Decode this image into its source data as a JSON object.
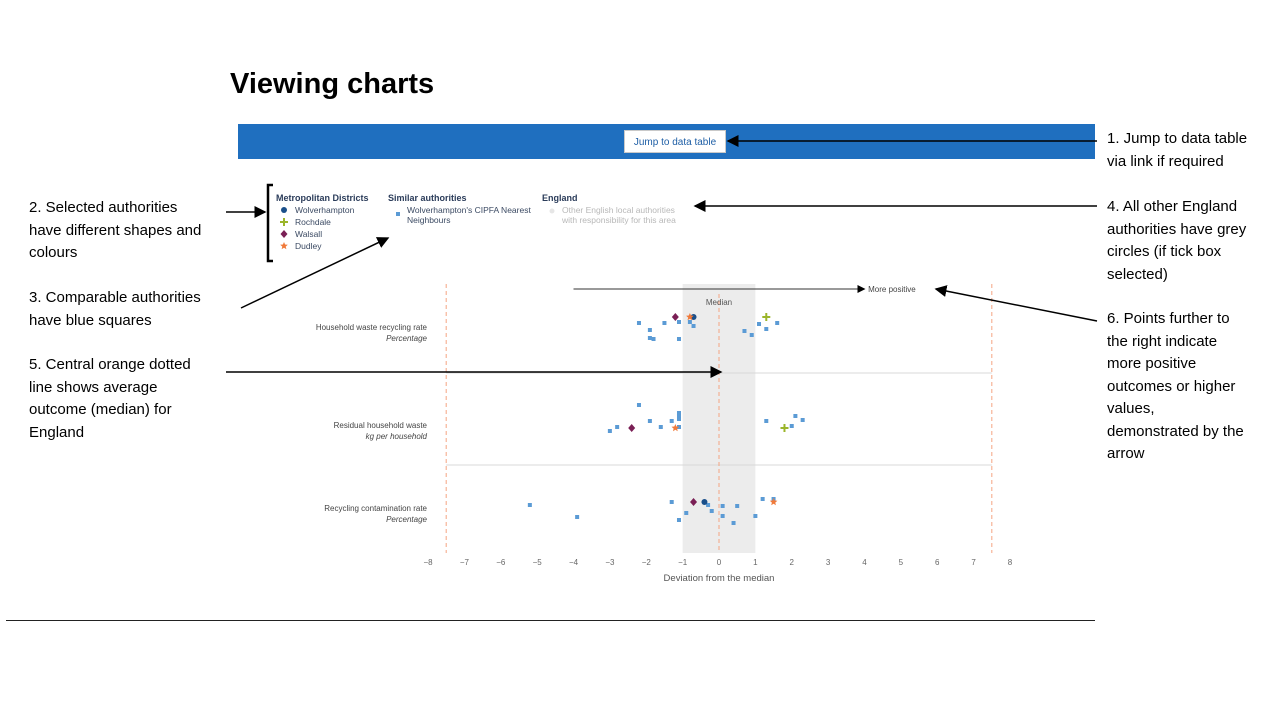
{
  "page": {
    "title": "Viewing charts",
    "jump_button": "Jump to data table"
  },
  "annotations": {
    "note1": [
      "1. Jump to data table",
      "via link if required"
    ],
    "note2": [
      "2. Selected authorities",
      "have different shapes and",
      "colours"
    ],
    "note3": [
      "3. Comparable authorities",
      "have blue squares"
    ],
    "note4": [
      "4. All other England",
      "authorities have grey",
      "circles (if tick box",
      "selected)"
    ],
    "note5": [
      "5. Central orange dotted",
      "line shows average",
      "outcome (median) for",
      "England"
    ],
    "note6": [
      "6. Points further to",
      "the right indicate",
      "more positive",
      "outcomes or higher",
      "values,",
      "demonstrated by the",
      "arrow"
    ]
  },
  "legend": {
    "group1_title": "Metropolitan Districts",
    "group1_items": [
      "Wolverhampton",
      "Rochdale",
      "Walsall",
      "Dudley"
    ],
    "group2_title": "Similar authorities",
    "group2_items": [
      "Wolverhampton's CIPFA Nearest",
      "Neighbours"
    ],
    "group3_title": "England",
    "group3_items": [
      "Other English local authorities",
      "with responsibility for this area"
    ]
  },
  "colors": {
    "wolverhampton": "#1a4f8a",
    "rochdale": "#9bb52a",
    "walsall": "#7a1f55",
    "dudley": "#f07a3a",
    "similar": "#5b9bd5",
    "england_other": "#d0d0d0",
    "median_band": "#ececec",
    "limit_line": "#f4a582",
    "bar": "#1f6fbf"
  },
  "chart_data": {
    "type": "scatter",
    "xlabel": "Deviation from the median",
    "xlim": [
      -8,
      8
    ],
    "xticks": [
      -8,
      -7,
      -6,
      -5,
      -4,
      -3,
      -2,
      -1,
      0,
      1,
      2,
      3,
      4,
      5,
      6,
      7,
      8
    ],
    "median_label": "Median",
    "median_band": [
      -1,
      1
    ],
    "limit_lines": [
      -7.5,
      7.5
    ],
    "direction_label": "More positive",
    "direction_arrow": [
      -4,
      4
    ],
    "rows": [
      {
        "name": "Household waste recycling rate",
        "unit": "Percentage",
        "similar": [
          [
            -2.2,
            0.4
          ],
          [
            -1.9,
            -0.3
          ],
          [
            -1.9,
            -1.1
          ],
          [
            -1.8,
            -1.2
          ],
          [
            -1.5,
            0.4
          ],
          [
            -1.1,
            0.5
          ],
          [
            -1.1,
            -1.2
          ],
          [
            -0.8,
            0.5
          ],
          [
            -0.7,
            0.1
          ],
          [
            0.7,
            -0.4
          ],
          [
            0.9,
            -0.8
          ],
          [
            1.1,
            0.3
          ],
          [
            1.3,
            -0.2
          ],
          [
            1.6,
            0.4
          ]
        ],
        "selected": [
          {
            "name": "Wolverhampton",
            "x": -0.7,
            "jitter": 1.0,
            "shape": "circle"
          },
          {
            "name": "Rochdale",
            "x": 1.3,
            "jitter": 1.0,
            "shape": "plus"
          },
          {
            "name": "Walsall",
            "x": -1.2,
            "jitter": 1.0,
            "shape": "diamond"
          },
          {
            "name": "Dudley",
            "x": -0.8,
            "jitter": 1.0,
            "shape": "star"
          }
        ]
      },
      {
        "name": "Residual household waste",
        "unit": "kg per household",
        "similar": [
          [
            -2.2,
            2.0
          ],
          [
            -2.8,
            -0.2
          ],
          [
            -3.0,
            -0.6
          ],
          [
            -1.9,
            0.4
          ],
          [
            -1.6,
            -0.2
          ],
          [
            -1.3,
            0.4
          ],
          [
            -1.1,
            1.2
          ],
          [
            -1.1,
            0.9
          ],
          [
            -1.1,
            0.6
          ],
          [
            -1.1,
            -0.2
          ],
          [
            1.3,
            0.4
          ],
          [
            2.0,
            -0.1
          ],
          [
            2.1,
            0.9
          ],
          [
            2.3,
            0.5
          ]
        ],
        "selected": [
          {
            "name": "Rochdale",
            "x": 1.8,
            "jitter": -0.3,
            "shape": "plus"
          },
          {
            "name": "Walsall",
            "x": -2.4,
            "jitter": -0.3,
            "shape": "diamond"
          },
          {
            "name": "Dudley",
            "x": -1.2,
            "jitter": -0.3,
            "shape": "star"
          }
        ]
      },
      {
        "name": "Recycling contamination rate",
        "unit": "Percentage",
        "similar": [
          [
            -5.2,
            0.3
          ],
          [
            -3.9,
            -0.9
          ],
          [
            -1.3,
            0.6
          ],
          [
            -0.9,
            -0.5
          ],
          [
            -1.1,
            -1.2
          ],
          [
            -0.3,
            0.3
          ],
          [
            -0.2,
            -0.3
          ],
          [
            0.1,
            0.2
          ],
          [
            0.1,
            -0.8
          ],
          [
            0.4,
            -1.5
          ],
          [
            0.5,
            0.2
          ],
          [
            1.0,
            -0.8
          ],
          [
            1.2,
            0.9
          ],
          [
            1.5,
            0.9
          ]
        ],
        "selected": [
          {
            "name": "Wolverhampton",
            "x": -0.4,
            "jitter": 0.6,
            "shape": "circle"
          },
          {
            "name": "Walsall",
            "x": -0.7,
            "jitter": 0.6,
            "shape": "diamond"
          },
          {
            "name": "Dudley",
            "x": 1.5,
            "jitter": 0.6,
            "shape": "star"
          }
        ]
      }
    ]
  }
}
